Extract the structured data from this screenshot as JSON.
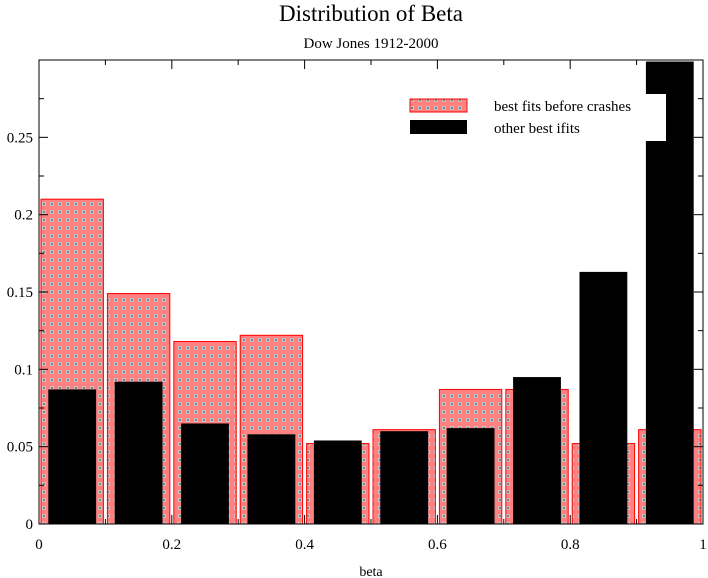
{
  "chart_data": {
    "type": "bar",
    "title": "Distribution of Beta",
    "subtitle": "Dow Jones 1912-2000",
    "xlabel": "beta",
    "ylabel": "",
    "xlim": [
      0,
      1
    ],
    "ylim": [
      0,
      0.3
    ],
    "x_ticks": [
      0,
      0.2,
      0.4,
      0.6,
      0.8,
      1
    ],
    "x_tick_labels": [
      "0",
      "0.2",
      "0.4",
      "0.6",
      "0.8",
      "1"
    ],
    "y_ticks": [
      0,
      0.05,
      0.1,
      0.15,
      0.2,
      0.25
    ],
    "y_tick_labels": [
      "0",
      "0.05",
      "0.1",
      "0.15",
      "0.2",
      "0.25"
    ],
    "bin_width": 0.1,
    "categories": [
      "0.05",
      "0.15",
      "0.25",
      "0.35",
      "0.45",
      "0.55",
      "0.65",
      "0.75",
      "0.85",
      "0.95"
    ],
    "series": [
      {
        "name": "best fits before crashes",
        "color": "#ff8080",
        "edge_color": "#ff0000",
        "x": [
          0.05,
          0.15,
          0.25,
          0.35,
          0.45,
          0.55,
          0.65,
          0.75,
          0.85,
          0.95
        ],
        "values": [
          0.21,
          0.149,
          0.118,
          0.122,
          0.052,
          0.061,
          0.087,
          0.087,
          0.052,
          0.061
        ]
      },
      {
        "name": "other best ifits",
        "color": "#000000",
        "x": [
          0.05,
          0.15,
          0.25,
          0.35,
          0.45,
          0.55,
          0.65,
          0.75,
          0.85,
          0.95
        ],
        "values": [
          0.087,
          0.092,
          0.065,
          0.058,
          0.054,
          0.06,
          0.062,
          0.095,
          0.163,
          0.299
        ]
      }
    ],
    "legend": {
      "position": "top-right",
      "entries": [
        "best fits before crashes",
        "other best ifits"
      ]
    }
  }
}
